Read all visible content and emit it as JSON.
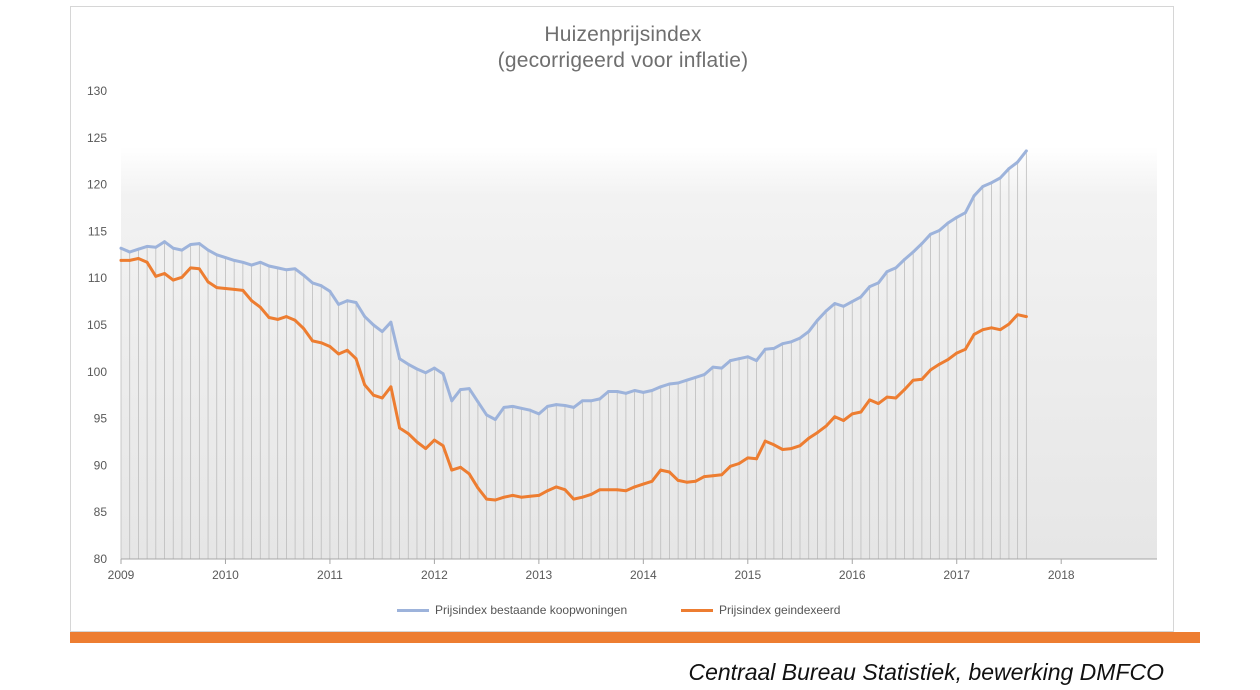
{
  "chart_data": {
    "type": "line",
    "title": "Huizenprijsindex",
    "subtitle": "(gecorrigeerd voor inflatie)",
    "source": "Centraal Bureau Statistiek, bewerking DMFCO",
    "x_tick_labels": [
      "2009",
      "2010",
      "2011",
      "2012",
      "2013",
      "2014",
      "2015",
      "2016",
      "2017",
      "2018"
    ],
    "y_tick_labels": [
      "80",
      "85",
      "90",
      "95",
      "100",
      "105",
      "110",
      "115",
      "120",
      "125",
      "130"
    ],
    "ylim": [
      80,
      130
    ],
    "xlim": [
      2009.0,
      2018.917
    ],
    "x_step": 0.08333,
    "x_start": 2009.0,
    "grid": "vertical lines per month",
    "legend_position": "bottom",
    "colors": {
      "series_1": "#9db3db",
      "series_2": "#ed7d31",
      "accent_bar": "#ed7d31"
    },
    "series": [
      {
        "name": "Prijsindex bestaande koopwoningen",
        "values": [
          113.2,
          112.8,
          113.1,
          113.4,
          113.3,
          113.9,
          113.2,
          113.0,
          113.6,
          113.7,
          113.0,
          112.5,
          112.2,
          111.9,
          111.7,
          111.4,
          111.7,
          111.3,
          111.1,
          110.9,
          111.0,
          110.3,
          109.5,
          109.2,
          108.6,
          107.2,
          107.6,
          107.4,
          105.9,
          105.0,
          104.3,
          105.3,
          101.4,
          100.8,
          100.3,
          99.9,
          100.4,
          99.8,
          96.9,
          98.1,
          98.2,
          96.8,
          95.4,
          94.9,
          96.2,
          96.3,
          96.1,
          95.9,
          95.5,
          96.3,
          96.5,
          96.4,
          96.2,
          96.9,
          96.9,
          97.1,
          97.9,
          97.9,
          97.7,
          98.0,
          97.8,
          98.0,
          98.4,
          98.7,
          98.8,
          99.1,
          99.4,
          99.7,
          100.5,
          100.4,
          101.2,
          101.4,
          101.6,
          101.2,
          102.4,
          102.5,
          103.0,
          103.2,
          103.6,
          104.3,
          105.5,
          106.5,
          107.3,
          107.0,
          107.5,
          108.0,
          109.1,
          109.5,
          110.7,
          111.1,
          112.0,
          112.8,
          113.7,
          114.7,
          115.1,
          115.9,
          116.5,
          117.0,
          118.8,
          119.8,
          120.2,
          120.7,
          121.7,
          122.4,
          123.6
        ]
      },
      {
        "name": "Prijsindex geindexeerd",
        "values": [
          111.9,
          111.9,
          112.1,
          111.7,
          110.2,
          110.5,
          109.8,
          110.1,
          111.1,
          111.0,
          109.6,
          109.0,
          108.9,
          108.8,
          108.7,
          107.6,
          106.9,
          105.8,
          105.6,
          105.9,
          105.5,
          104.6,
          103.3,
          103.1,
          102.7,
          101.9,
          102.3,
          101.4,
          98.6,
          97.5,
          97.2,
          98.4,
          94.0,
          93.4,
          92.5,
          91.8,
          92.7,
          92.1,
          89.5,
          89.8,
          89.1,
          87.6,
          86.4,
          86.3,
          86.6,
          86.8,
          86.6,
          86.7,
          86.8,
          87.3,
          87.7,
          87.4,
          86.4,
          86.6,
          86.9,
          87.4,
          87.4,
          87.4,
          87.3,
          87.7,
          88.0,
          88.3,
          89.5,
          89.3,
          88.4,
          88.2,
          88.3,
          88.8,
          88.9,
          89.0,
          89.9,
          90.2,
          90.8,
          90.7,
          92.6,
          92.2,
          91.7,
          91.8,
          92.1,
          92.9,
          93.5,
          94.2,
          95.2,
          94.8,
          95.5,
          95.7,
          97.0,
          96.6,
          97.3,
          97.2,
          98.1,
          99.1,
          99.2,
          100.2,
          100.8,
          101.3,
          102.0,
          102.4,
          104.0,
          104.5,
          104.7,
          104.5,
          105.1,
          106.1,
          105.9
        ]
      }
    ]
  }
}
